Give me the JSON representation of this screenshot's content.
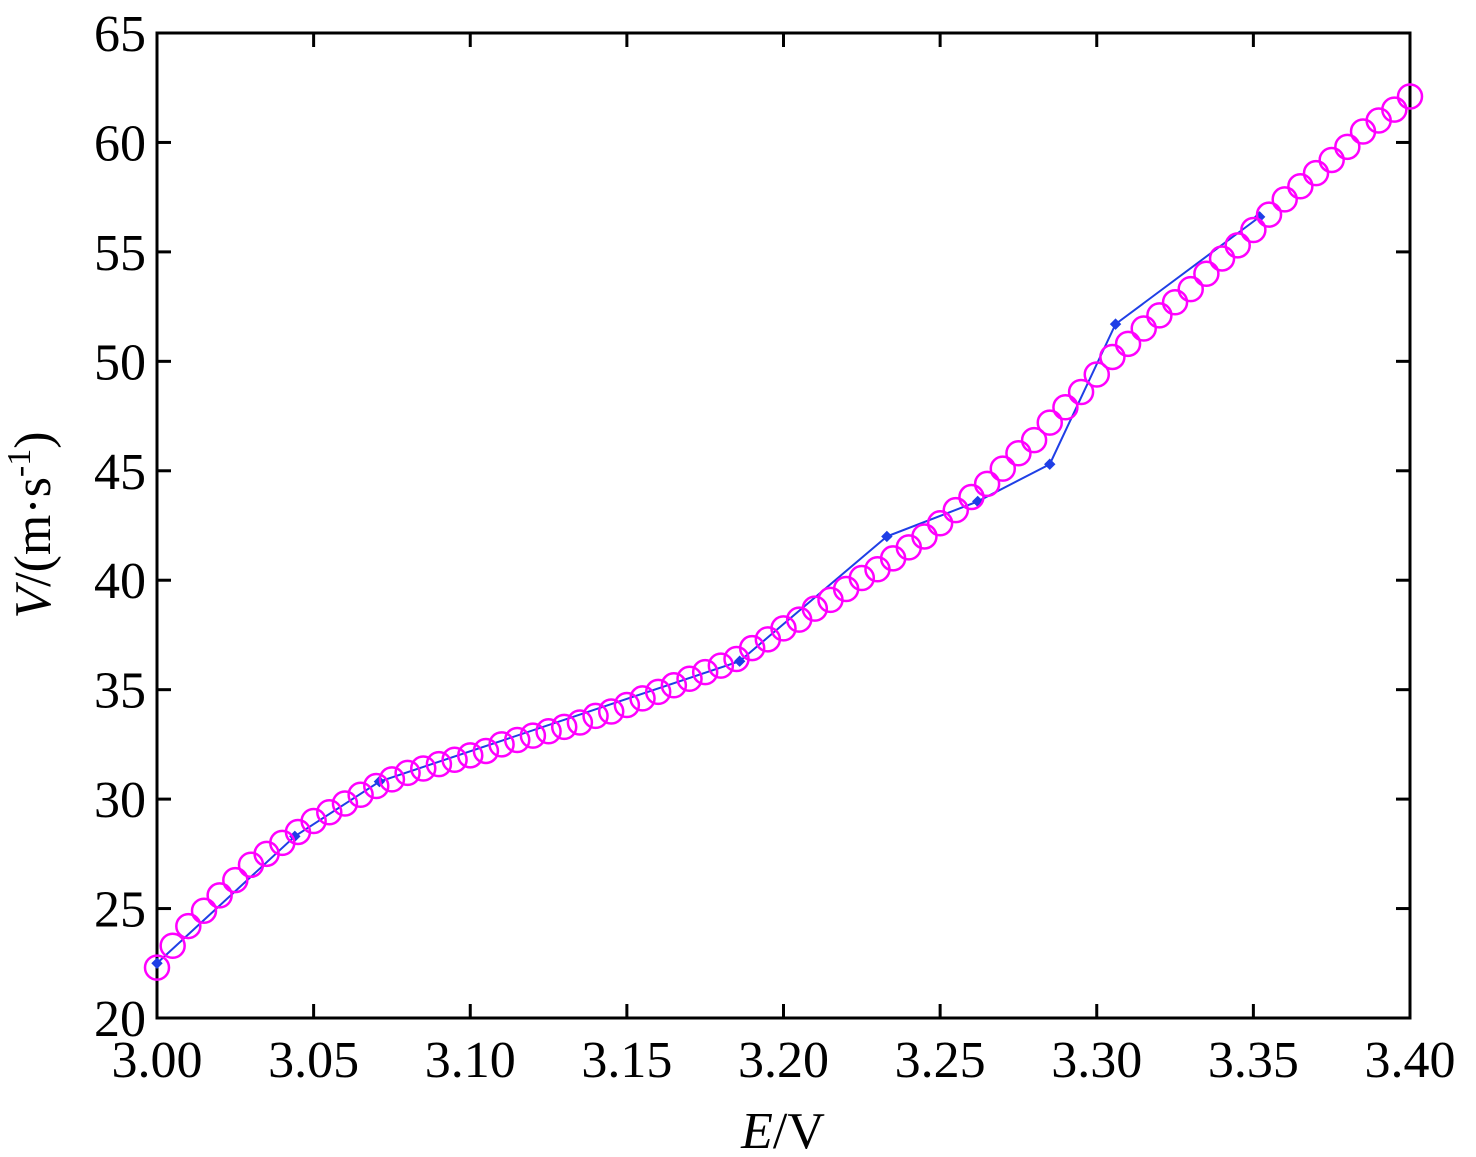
{
  "chart_data": {
    "type": "line",
    "xlabel": {
      "var": "E",
      "unit": "/V"
    },
    "ylabel": {
      "var": "V",
      "unit_prefix": "/(m·s",
      "unit_sup": "-1",
      "unit_suffix": ")"
    },
    "xlim": [
      3.0,
      3.4
    ],
    "ylim": [
      20,
      65
    ],
    "x_ticks": [
      3.0,
      3.05,
      3.1,
      3.15,
      3.2,
      3.25,
      3.3,
      3.35,
      3.4
    ],
    "x_tick_labels": [
      "3.00",
      "3.05",
      "3.10",
      "3.15",
      "3.20",
      "3.25",
      "3.30",
      "3.35",
      "3.40"
    ],
    "y_ticks": [
      20,
      25,
      30,
      35,
      40,
      45,
      50,
      55,
      60,
      65
    ],
    "y_tick_labels": [
      "20",
      "25",
      "30",
      "35",
      "40",
      "45",
      "50",
      "55",
      "60",
      "65"
    ],
    "grid": false,
    "series": [
      {
        "style": "line-with-diamond-markers",
        "color": "#1f3fe6",
        "x": [
          3.0,
          3.044,
          3.071,
          3.186,
          3.233,
          3.262,
          3.285,
          3.306,
          3.352
        ],
        "y": [
          22.5,
          28.3,
          30.8,
          36.3,
          42.0,
          43.6,
          45.3,
          51.7,
          56.6
        ]
      },
      {
        "style": "circle-markers",
        "color": "#ff00ff",
        "x": [
          3.0,
          3.005,
          3.01,
          3.015,
          3.02,
          3.025,
          3.03,
          3.035,
          3.04,
          3.045,
          3.05,
          3.055,
          3.06,
          3.065,
          3.07,
          3.075,
          3.08,
          3.085,
          3.09,
          3.095,
          3.1,
          3.105,
          3.11,
          3.115,
          3.12,
          3.125,
          3.13,
          3.135,
          3.14,
          3.145,
          3.15,
          3.155,
          3.16,
          3.165,
          3.17,
          3.175,
          3.18,
          3.185,
          3.19,
          3.195,
          3.2,
          3.205,
          3.21,
          3.215,
          3.22,
          3.225,
          3.23,
          3.235,
          3.24,
          3.245,
          3.25,
          3.255,
          3.26,
          3.265,
          3.27,
          3.275,
          3.28,
          3.285,
          3.29,
          3.295,
          3.3,
          3.305,
          3.31,
          3.315,
          3.32,
          3.325,
          3.33,
          3.335,
          3.34,
          3.345,
          3.35,
          3.355,
          3.36,
          3.365,
          3.37,
          3.375,
          3.38,
          3.385,
          3.39,
          3.395,
          3.4
        ],
        "y": [
          22.3,
          23.3,
          24.2,
          24.9,
          25.6,
          26.3,
          27.0,
          27.5,
          28.0,
          28.5,
          29.0,
          29.4,
          29.8,
          30.2,
          30.6,
          30.9,
          31.2,
          31.4,
          31.6,
          31.8,
          32.0,
          32.2,
          32.5,
          32.7,
          32.9,
          33.1,
          33.3,
          33.5,
          33.8,
          34.0,
          34.3,
          34.6,
          34.9,
          35.2,
          35.5,
          35.8,
          36.1,
          36.4,
          36.9,
          37.3,
          37.8,
          38.2,
          38.7,
          39.1,
          39.6,
          40.1,
          40.5,
          41.0,
          41.5,
          42.0,
          42.6,
          43.2,
          43.8,
          44.4,
          45.1,
          45.8,
          46.4,
          47.2,
          47.9,
          48.6,
          49.4,
          50.2,
          50.8,
          51.5,
          52.1,
          52.7,
          53.3,
          54.0,
          54.7,
          55.3,
          56.0,
          56.7,
          57.4,
          58.0,
          58.6,
          59.2,
          59.8,
          60.5,
          61.0,
          61.5,
          62.1
        ]
      }
    ]
  }
}
